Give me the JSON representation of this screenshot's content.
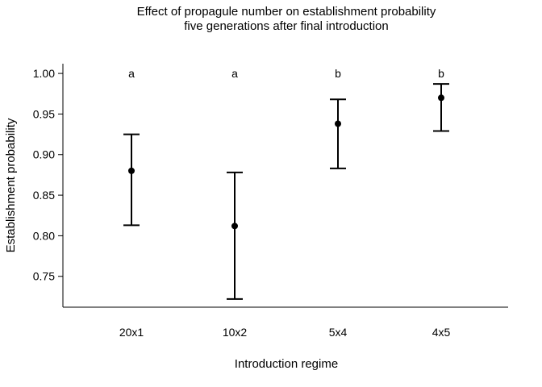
{
  "chart_data": {
    "type": "scatter",
    "title": "Effect of propagule number on establishment probability",
    "subtitle": "five generations after final introduction",
    "xlabel": "Introduction regime",
    "ylabel": "Establishment probability",
    "categories": [
      "20x1",
      "10x2",
      "5x4",
      "4x5"
    ],
    "y_ticks": [
      "0.75",
      "0.80",
      "0.85",
      "0.90",
      "0.95",
      "1.00"
    ],
    "ylim": [
      0.712,
      1.012
    ],
    "grid": false,
    "series": [
      {
        "values": [
          0.88,
          0.812,
          0.938,
          0.97
        ],
        "lower": [
          0.813,
          0.722,
          0.883,
          0.929
        ],
        "upper": [
          0.925,
          0.878,
          0.968,
          0.987
        ],
        "significance_letters": [
          "a",
          "a",
          "b",
          "b"
        ]
      }
    ],
    "colors": {
      "points": "#000000",
      "axes": "#000000"
    }
  }
}
